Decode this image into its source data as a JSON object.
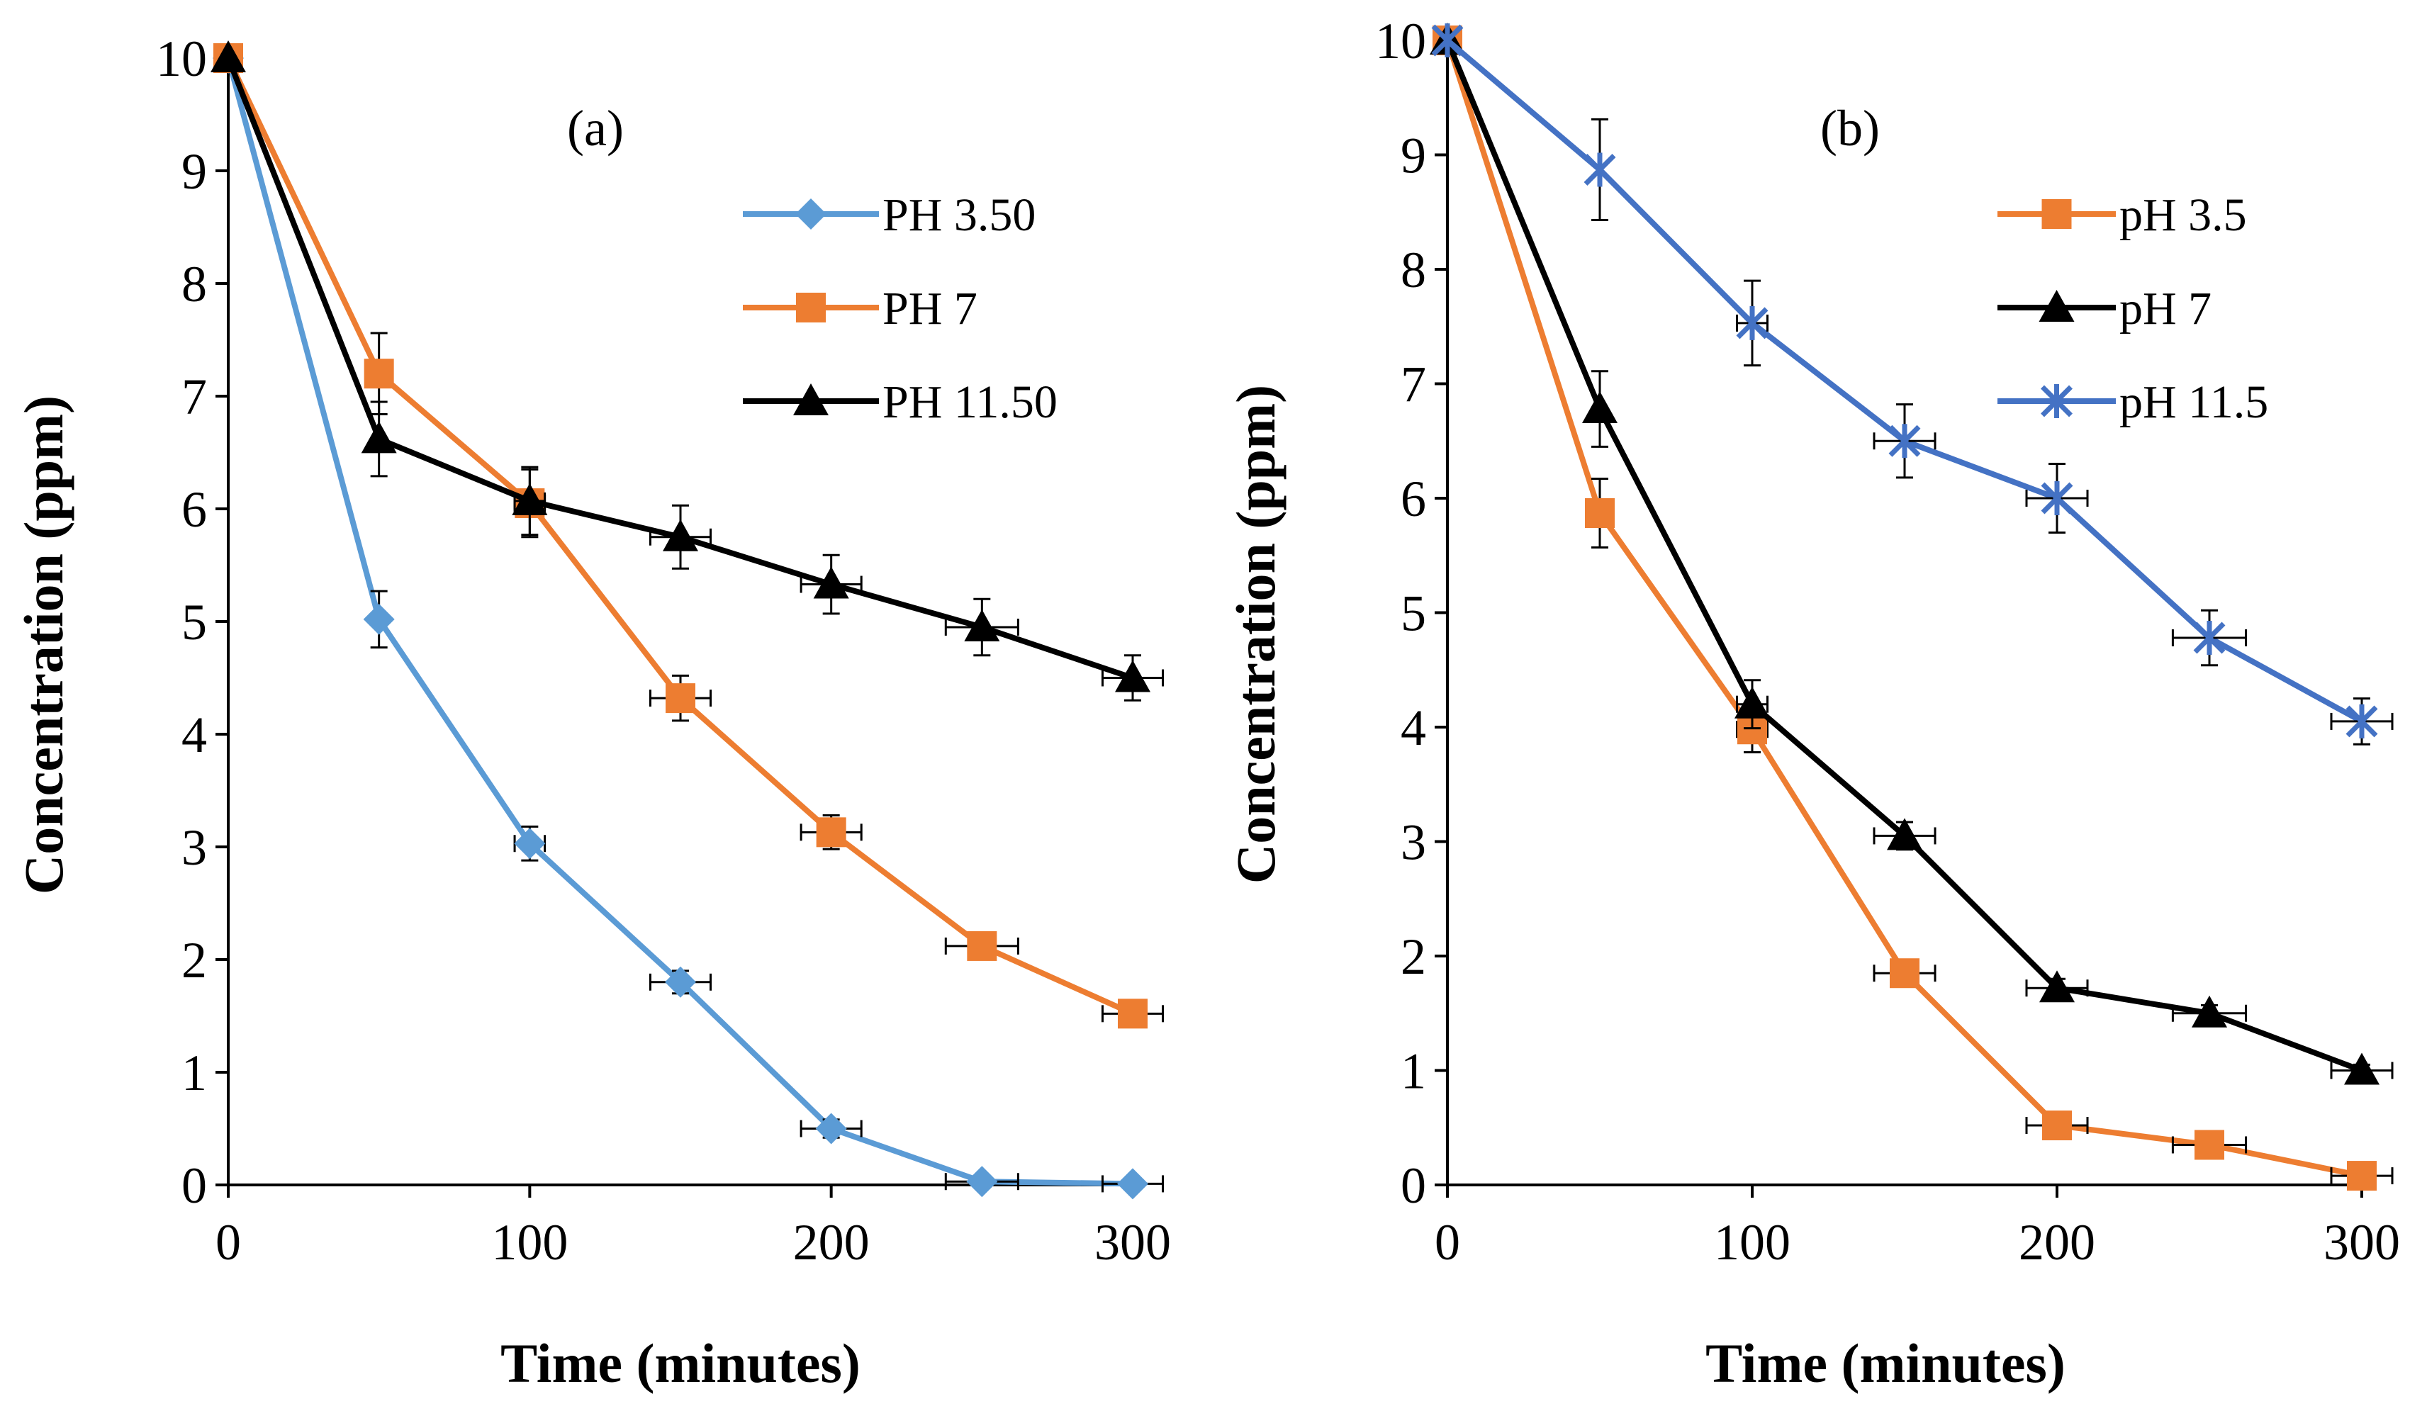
{
  "chart_data": [
    {
      "type": "line",
      "panel_label": "(a)",
      "xlabel": "Time (minutes)",
      "ylabel": "Concentration (ppm)",
      "xlim": [
        0,
        300
      ],
      "ylim": [
        0,
        10
      ],
      "xticks": [
        "0",
        "100",
        "200",
        "300"
      ],
      "yticks": [
        "0",
        "1",
        "2",
        "3",
        "4",
        "5",
        "6",
        "7",
        "8",
        "9",
        "10"
      ],
      "x": [
        0,
        50,
        100,
        150,
        200,
        250,
        300
      ],
      "legend_position": "top-right",
      "series": [
        {
          "name": "PH 3.50",
          "color": "#5b9bd5",
          "marker": "diamond",
          "values": [
            10,
            5.02,
            3.03,
            1.8,
            0.5,
            0.03,
            0.01
          ],
          "yerr": [
            0,
            0.25,
            0.15,
            0.1,
            0.08,
            0.05,
            0.05
          ],
          "xerr": [
            0,
            0,
            5,
            10,
            10,
            12,
            10
          ]
        },
        {
          "name": "PH 7",
          "color": "#ed7d31",
          "marker": "square",
          "values": [
            10,
            7.2,
            6.05,
            4.32,
            3.13,
            2.12,
            1.52
          ],
          "yerr": [
            0,
            0.36,
            0.3,
            0.2,
            0.15,
            0.08,
            0.08
          ],
          "xerr": [
            0,
            0,
            5,
            10,
            10,
            12,
            10
          ]
        },
        {
          "name": "PH 11.50",
          "color": "#000000",
          "marker": "triangle",
          "values": [
            10,
            6.62,
            6.07,
            5.75,
            5.33,
            4.95,
            4.5
          ],
          "yerr": [
            0,
            0.33,
            0.3,
            0.28,
            0.26,
            0.25,
            0.2
          ],
          "xerr": [
            0,
            0,
            5,
            10,
            10,
            12,
            10
          ]
        }
      ]
    },
    {
      "type": "line",
      "panel_label": "(b)",
      "xlabel": "Time (minutes)",
      "ylabel": "Concentration (ppm)",
      "xlim": [
        0,
        300
      ],
      "ylim": [
        0,
        10
      ],
      "xticks": [
        "0",
        "100",
        "200",
        "300"
      ],
      "yticks": [
        "0",
        "1",
        "2",
        "3",
        "4",
        "5",
        "6",
        "7",
        "8",
        "9",
        "10"
      ],
      "x": [
        0,
        50,
        100,
        150,
        200,
        250,
        300
      ],
      "legend_position": "top-right",
      "series": [
        {
          "name": "pH 3.5",
          "color": "#ed7d31",
          "marker": "square",
          "values": [
            10,
            5.87,
            3.98,
            1.85,
            0.52,
            0.35,
            0.08
          ],
          "yerr": [
            0,
            0.3,
            0.2,
            0.1,
            0.06,
            0.05,
            0.05
          ],
          "xerr": [
            0,
            0,
            5,
            10,
            10,
            12,
            10
          ]
        },
        {
          "name": "pH 7",
          "color": "#000000",
          "marker": "triangle",
          "values": [
            10,
            6.78,
            4.2,
            3.05,
            1.72,
            1.5,
            1.0
          ],
          "yerr": [
            0,
            0.33,
            0.21,
            0.12,
            0.08,
            0.07,
            0.05
          ],
          "xerr": [
            0,
            0,
            5,
            10,
            10,
            12,
            10
          ]
        },
        {
          "name": "pH 11.5",
          "color": "#4472c4",
          "marker": "star",
          "values": [
            10,
            8.87,
            7.53,
            6.5,
            6.0,
            4.78,
            4.05
          ],
          "yerr": [
            0,
            0.44,
            0.37,
            0.32,
            0.3,
            0.24,
            0.2
          ],
          "xerr": [
            0,
            0,
            5,
            10,
            10,
            12,
            10
          ]
        }
      ]
    }
  ]
}
